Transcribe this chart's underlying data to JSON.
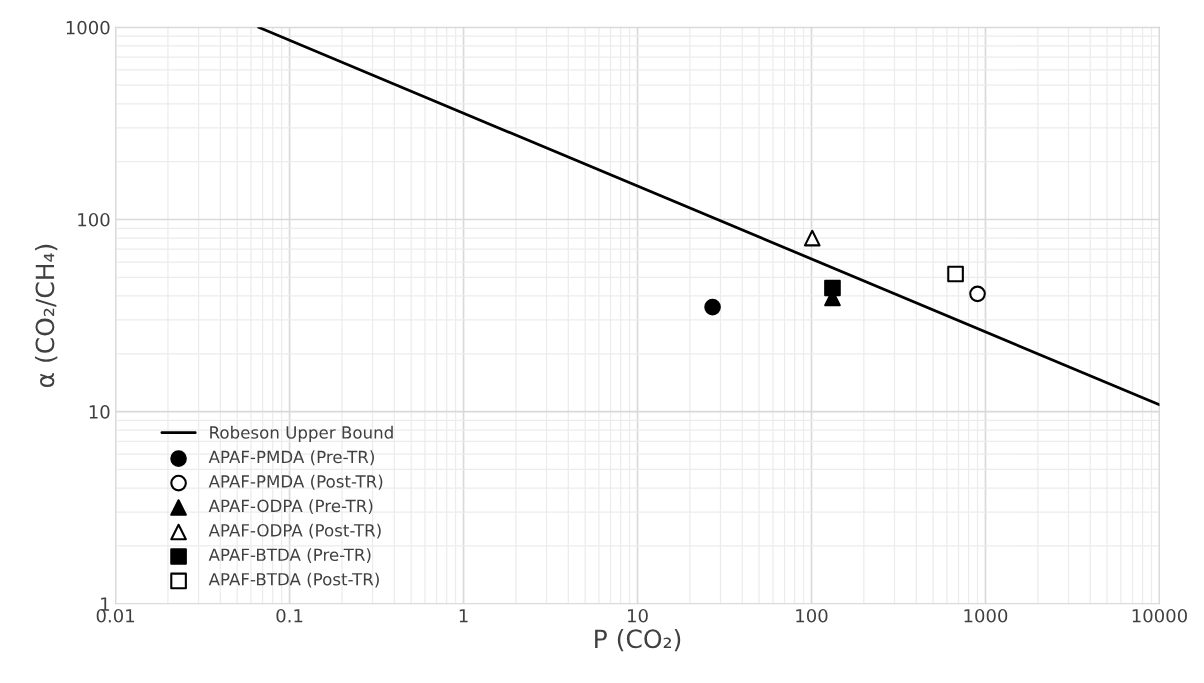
{
  "chart_data": {
    "type": "scatter",
    "xlabel": "P (CO₂)",
    "ylabel": "α (CO₂/CH₄)",
    "log": "xy",
    "grid": true,
    "legend": "bottom left",
    "xlim": [
      0.01,
      10000
    ],
    "xticks": [
      0.01,
      0.1,
      1,
      10,
      100,
      1000,
      10000
    ],
    "ylim": [
      1,
      1000
    ],
    "yticks": [
      1,
      10,
      100,
      1000
    ],
    "series": [
      {
        "name": "Robeson Upper Bound",
        "type": "line",
        "color": "#000000",
        "x": [
          0.0664,
          10000
        ],
        "values": [
          1000,
          10.86
        ],
        "marker": "none",
        "line_style": "solid"
      },
      {
        "name": "APAF-PMDA (Pre-TR)",
        "color": "#000000",
        "marker": "circle",
        "x": [
          27
        ],
        "values": [
          35
        ]
      },
      {
        "name": "APAF-PMDA (Post-TR)",
        "color": "#ffffff",
        "marker": "circle",
        "x": [
          900
        ],
        "values": [
          41
        ]
      },
      {
        "name": "APAF-ODPA (Pre-TR)",
        "color": "#000000",
        "marker": "triangle",
        "x": [
          132
        ],
        "values": [
          39
        ]
      },
      {
        "name": "APAF-ODPA (Post-TR)",
        "color": "#ffffff",
        "marker": "triangle",
        "x": [
          101
        ],
        "values": [
          80
        ]
      },
      {
        "name": "APAF-BTDA (Pre-TR)",
        "color": "#000000",
        "marker": "square",
        "x": [
          132
        ],
        "values": [
          44
        ]
      },
      {
        "name": "APAF-BTDA (Post-TR)",
        "color": "#ffffff",
        "marker": "square",
        "x": [
          673
        ],
        "values": [
          52
        ]
      }
    ]
  }
}
